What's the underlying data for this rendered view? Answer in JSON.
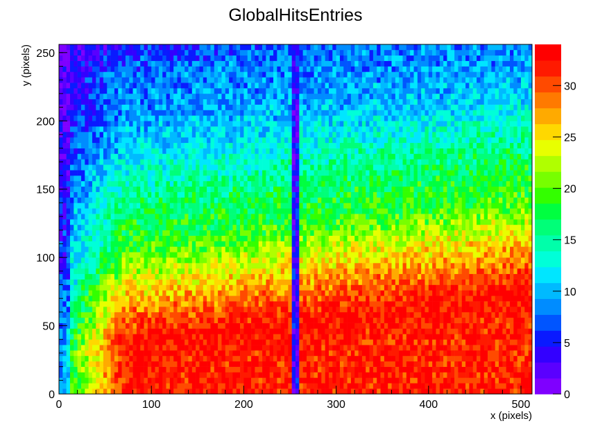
{
  "chart_data": {
    "type": "heatmap",
    "title": "GlobalHitsEntries",
    "xlabel": "x (pixels)",
    "ylabel": "y (pixels)",
    "xlim": [
      0,
      512
    ],
    "ylim": [
      0,
      256
    ],
    "zlim": [
      0,
      34
    ],
    "x_ticks": [
      0,
      100,
      200,
      300,
      400,
      500
    ],
    "y_ticks": [
      0,
      50,
      100,
      150,
      200,
      250
    ],
    "z_ticks": [
      0,
      5,
      10,
      15,
      20,
      25,
      30
    ],
    "x_tick_labels": [
      "0",
      "100",
      "200",
      "300",
      "400",
      "500"
    ],
    "y_tick_labels": [
      "0",
      "50",
      "100",
      "150",
      "200",
      "250"
    ],
    "z_tick_labels": [
      "0",
      "5",
      "10",
      "15",
      "20",
      "25",
      "30"
    ],
    "palette": [
      "#7f00ff",
      "#5a00ff",
      "#3300ff",
      "#0a1aff",
      "#0055ff",
      "#008cff",
      "#00baff",
      "#00e6ff",
      "#00ffd8",
      "#00ffaa",
      "#00ff78",
      "#00ff40",
      "#33ff00",
      "#77ff00",
      "#b0ff00",
      "#e8ff00",
      "#ffd800",
      "#ffaa00",
      "#ff7a00",
      "#ff4a00",
      "#ff1a00",
      "#ff0000"
    ],
    "description_rows": [
      {
        "y": 10,
        "typical_value": 32
      },
      {
        "y": 30,
        "typical_value": 33
      },
      {
        "y": 50,
        "typical_value": 29
      },
      {
        "y": 75,
        "typical_value": 24
      },
      {
        "y": 100,
        "typical_value": 19
      },
      {
        "y": 125,
        "typical_value": 17
      },
      {
        "y": 150,
        "typical_value": 14
      },
      {
        "y": 175,
        "typical_value": 11
      },
      {
        "y": 200,
        "typical_value": 9
      },
      {
        "y": 225,
        "typical_value": 8
      },
      {
        "y": 250,
        "typical_value": 5
      }
    ],
    "low_column_x": 256
  }
}
